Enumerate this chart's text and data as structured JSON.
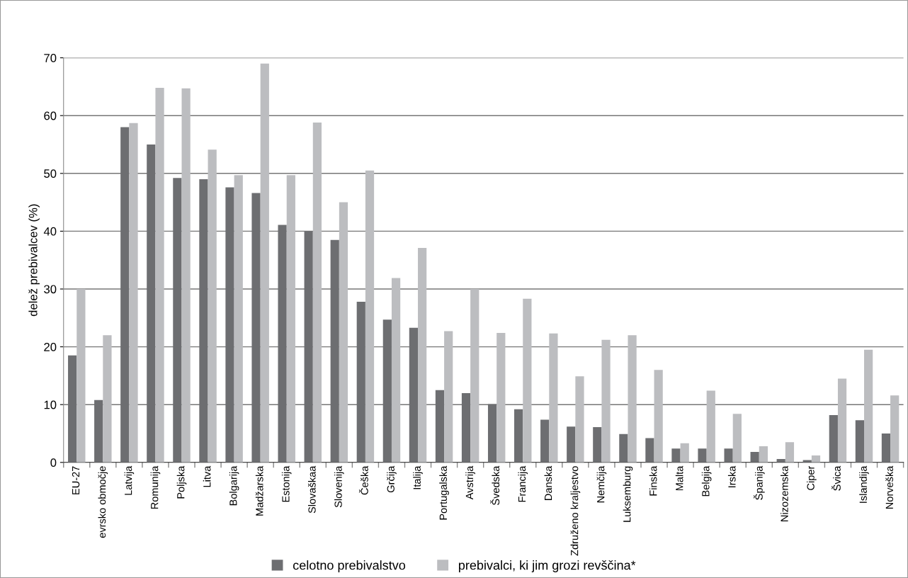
{
  "chart_data": {
    "type": "bar",
    "ylabel": "delež prebivalcev (%)",
    "categories": [
      "EU-27",
      "evrsko območje",
      "Latvija",
      "Romunija",
      "Poljska",
      "Litva",
      "Bolgarija",
      "Madžarska",
      "Estonija",
      "Slovaškaa",
      "Slovenija",
      "Češka",
      "Grčija",
      "Italija",
      "Portugalska",
      "Avstrija",
      "Švedska",
      "Francija",
      "Danska",
      "Združeno kraljestvo",
      "Nemčija",
      "Luksemburg",
      "Finska",
      "Malta",
      "Belgija",
      "Irska",
      "Španija",
      "Nizozemska",
      "Ciper",
      "Švica",
      "Islandija",
      "Norveška"
    ],
    "series": [
      {
        "name": "celotno prebivalstvo",
        "color": "#6d6e71",
        "values": [
          18.5,
          10.8,
          58,
          55,
          49.2,
          49,
          47.6,
          46.6,
          41.1,
          40,
          38.5,
          27.8,
          24.7,
          23.3,
          12.5,
          12,
          10.1,
          9.2,
          7.4,
          6.2,
          6.1,
          4.9,
          4.2,
          2.4,
          2.4,
          2.4,
          1.8,
          0.6,
          0.4,
          8.2,
          7.3,
          5
        ]
      },
      {
        "name": "prebivalci, ki jim grozi revščina*",
        "color": "#bcbdc0",
        "values": [
          30,
          22,
          58.7,
          64.8,
          64.7,
          54.1,
          49.7,
          69,
          49.7,
          58.8,
          45,
          50.5,
          31.9,
          37.1,
          22.7,
          30,
          22.4,
          28.3,
          22.3,
          14.9,
          21.2,
          22,
          16,
          3.3,
          12.4,
          8.4,
          2.8,
          3.5,
          1.2,
          14.5,
          19.5,
          11.6
        ]
      }
    ],
    "ylim": [
      0,
      70
    ],
    "yticks": [
      0,
      10,
      20,
      30,
      40,
      50,
      60,
      70
    ],
    "grid": "y",
    "legend": "bottom"
  }
}
